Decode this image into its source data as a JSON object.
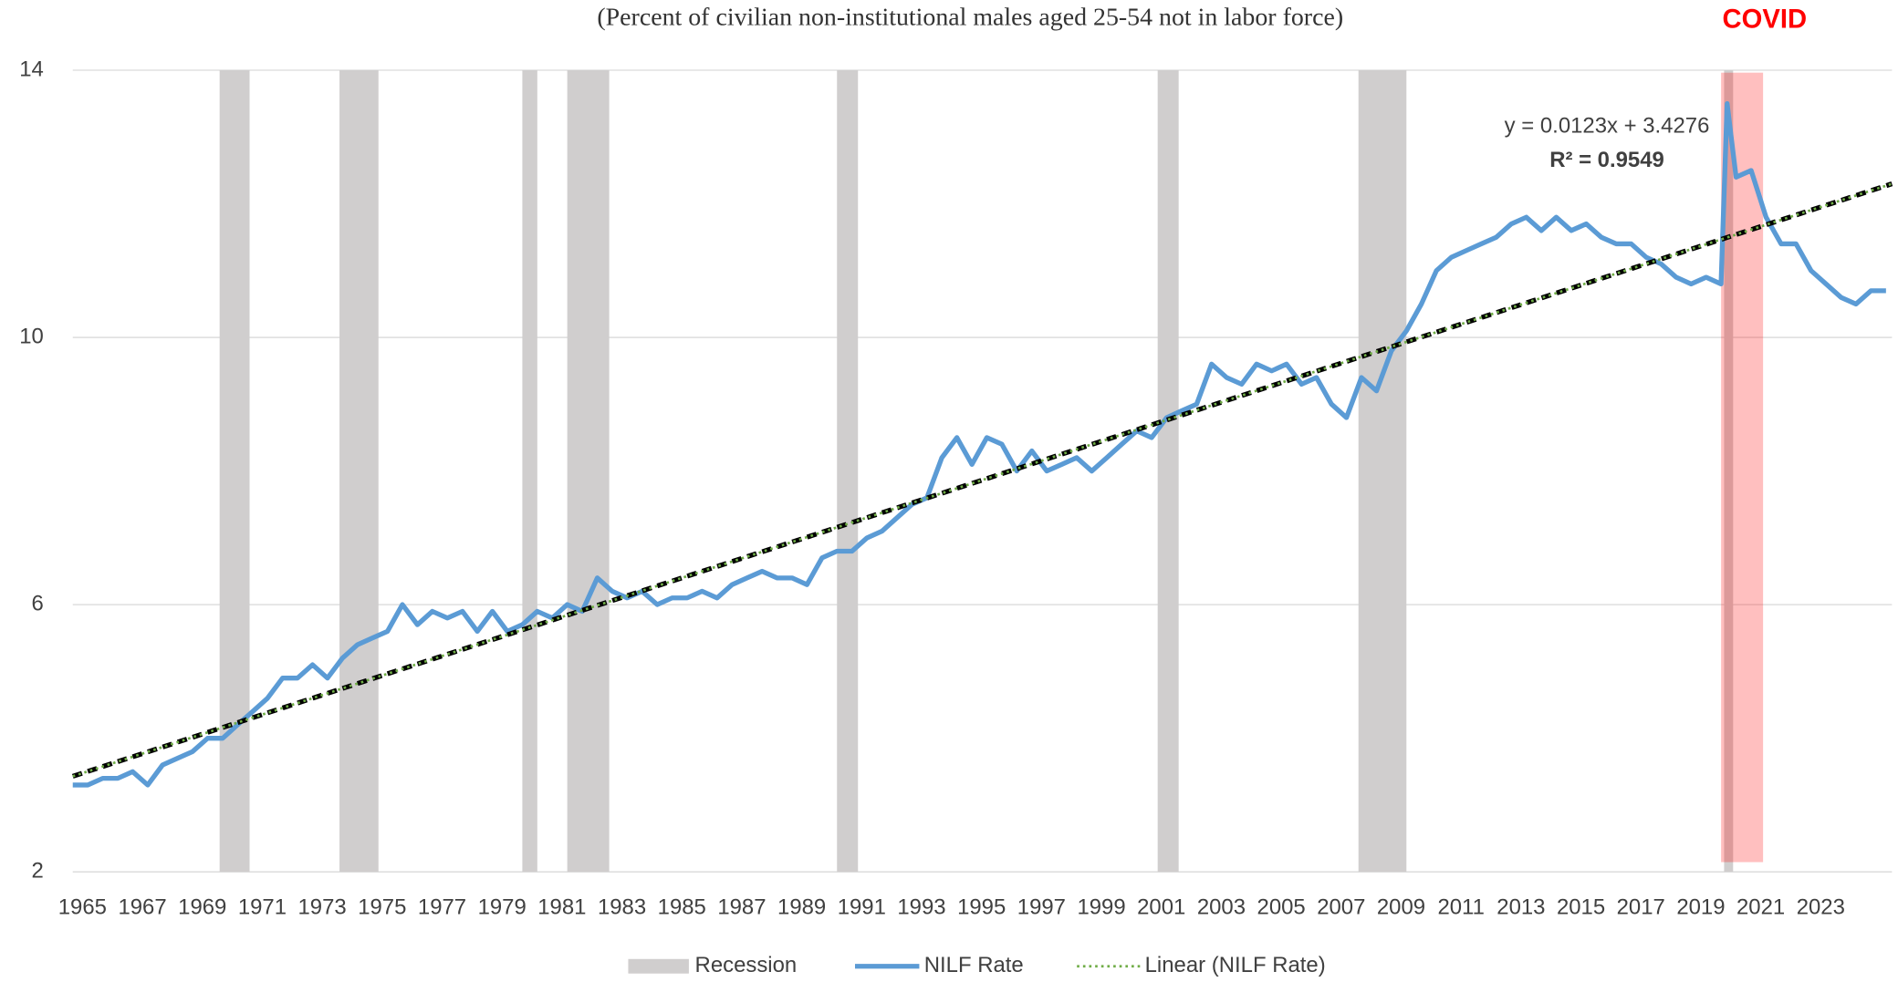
{
  "chart_data": {
    "type": "line",
    "subtitle": "(Percent of  civilian non-institutional  males aged 25-54 not in labor force)",
    "x": [
      1965,
      1965.5,
      1966,
      1966.5,
      1967,
      1967.5,
      1968,
      1968.5,
      1969,
      1969.5,
      1970,
      1970.5,
      1971,
      1971.5,
      1972,
      1972.5,
      1973,
      1973.5,
      1974,
      1974.5,
      1975,
      1975.5,
      1976,
      1976.5,
      1977,
      1977.5,
      1978,
      1978.5,
      1979,
      1979.5,
      1980,
      1980.5,
      1981,
      1981.5,
      1982,
      1982.5,
      1983,
      1983.5,
      1984,
      1984.5,
      1985,
      1985.5,
      1986,
      1986.5,
      1987,
      1987.5,
      1988,
      1988.5,
      1989,
      1989.5,
      1990,
      1990.5,
      1991,
      1991.5,
      1992,
      1992.5,
      1993,
      1993.5,
      1994,
      1994.5,
      1995,
      1995.5,
      1996,
      1996.5,
      1997,
      1997.5,
      1998,
      1998.5,
      1999,
      1999.5,
      2000,
      2000.5,
      2001,
      2001.5,
      2002,
      2002.5,
      2003,
      2003.5,
      2004,
      2004.5,
      2005,
      2005.5,
      2006,
      2006.5,
      2007,
      2007.5,
      2008,
      2008.5,
      2009,
      2009.5,
      2010,
      2010.5,
      2011,
      2011.5,
      2012,
      2012.5,
      2013,
      2013.5,
      2014,
      2014.5,
      2015,
      2015.5,
      2016,
      2016.5,
      2017,
      2017.5,
      2018,
      2018.5,
      2019,
      2019.5,
      2020,
      2020.2,
      2020.5,
      2021,
      2021.5,
      2022,
      2022.5,
      2023,
      2023.5,
      2024,
      2024.5,
      2025,
      2025.5
    ],
    "series": [
      {
        "name": "NILF Rate",
        "color": "#5b9bd5",
        "values": [
          3.3,
          3.3,
          3.4,
          3.4,
          3.5,
          3.3,
          3.6,
          3.7,
          3.8,
          4.0,
          4.0,
          4.2,
          4.4,
          4.6,
          4.9,
          4.9,
          5.1,
          4.9,
          5.2,
          5.4,
          5.5,
          5.6,
          6.0,
          5.7,
          5.9,
          5.8,
          5.9,
          5.6,
          5.9,
          5.6,
          5.7,
          5.9,
          5.8,
          6.0,
          5.9,
          6.4,
          6.2,
          6.1,
          6.2,
          6.0,
          6.1,
          6.1,
          6.2,
          6.1,
          6.3,
          6.4,
          6.5,
          6.4,
          6.4,
          6.3,
          6.7,
          6.8,
          6.8,
          7.0,
          7.1,
          7.3,
          7.5,
          7.6,
          8.2,
          8.5,
          8.1,
          8.5,
          8.4,
          8.0,
          8.3,
          8.0,
          8.1,
          8.2,
          8.0,
          8.2,
          8.4,
          8.6,
          8.5,
          8.8,
          8.9,
          9.0,
          9.6,
          9.4,
          9.3,
          9.6,
          9.5,
          9.6,
          9.3,
          9.4,
          9.0,
          8.8,
          9.4,
          9.2,
          9.8,
          10.1,
          10.5,
          11.0,
          11.2,
          11.3,
          11.4,
          11.5,
          11.7,
          11.8,
          11.6,
          11.8,
          11.6,
          11.7,
          11.5,
          11.4,
          11.4,
          11.2,
          11.1,
          10.9,
          10.8,
          10.9,
          10.8,
          13.5,
          12.4,
          12.5,
          11.8,
          11.4,
          11.4,
          11.0,
          10.8,
          10.6,
          10.5,
          10.7,
          10.7
        ]
      }
    ],
    "trendline": {
      "name": "Linear (NILF Rate)",
      "color": "#70ad47",
      "x": [
        1965,
        2025.7
      ],
      "values": [
        3.43,
        12.3
      ]
    },
    "equation": "y = 0.0123x + 3.4276",
    "r_squared": "R² = 0.9549",
    "recessions": {
      "name": "Recession",
      "color": "#d0cece",
      "periods": [
        [
          1969.9,
          1970.9
        ],
        [
          1973.9,
          1975.2
        ],
        [
          1980.0,
          1980.5
        ],
        [
          1981.5,
          1982.9
        ],
        [
          1990.5,
          1991.2
        ],
        [
          2001.2,
          2001.9
        ],
        [
          2007.9,
          2009.5
        ],
        [
          2020.1,
          2020.4
        ]
      ]
    },
    "covid": {
      "label": "COVID",
      "color": "#ff0000",
      "range": [
        2020.0,
        2021.4
      ]
    },
    "xlim": [
      1965,
      2025.7
    ],
    "xticks": [
      1965,
      1967,
      1969,
      1971,
      1973,
      1975,
      1977,
      1979,
      1981,
      1983,
      1985,
      1987,
      1989,
      1991,
      1993,
      1995,
      1997,
      1999,
      2001,
      2003,
      2005,
      2007,
      2009,
      2011,
      2013,
      2015,
      2017,
      2019,
      2021,
      2023
    ],
    "ylim": [
      2,
      14
    ],
    "yticks": [
      2,
      6,
      10,
      14
    ],
    "grid": true
  }
}
